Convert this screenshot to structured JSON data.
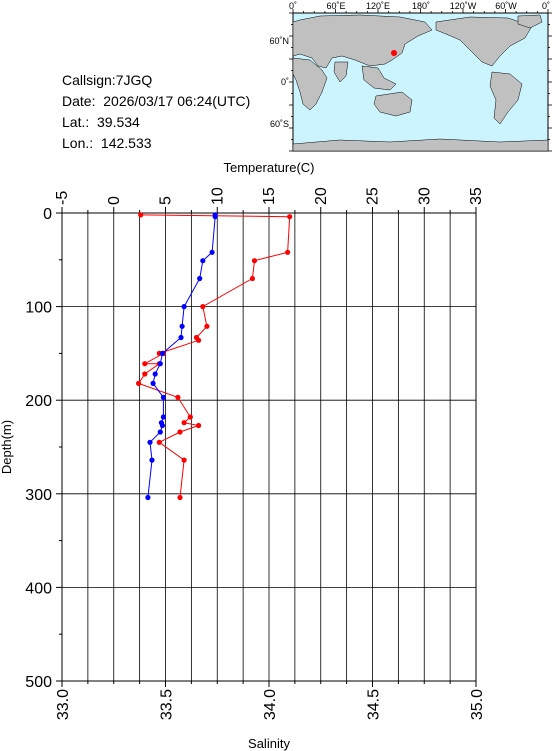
{
  "station": {
    "callsign": "Callsign:7JGQ",
    "date": "Date:  2026/03/17 06:24(UTC)",
    "lat": "Lat.:  39.534",
    "lon": "Lon.:  142.533"
  },
  "map": {
    "top_labels": [
      "0˚",
      "60˚E",
      "120˚E",
      "180˚",
      "120˚W",
      "60˚W",
      "0˚"
    ],
    "left_labels": [
      "60˚N",
      "0˚",
      "60˚S"
    ],
    "ocean_color": "#ccf4ff",
    "land_color": "#c0c0c0",
    "marker_color": "#ff0000"
  },
  "chart_data": {
    "type": "line",
    "title": "",
    "x_top_label": "Temperature(C)",
    "x_bottom_label": "Salinity",
    "ylabel": "Depth(m)",
    "temperature_ticks": [
      "-5",
      "0",
      "5",
      "10",
      "15",
      "20",
      "25",
      "30",
      "35"
    ],
    "salinity_ticks": [
      "33.0",
      "33.5",
      "34.0",
      "34.5",
      "35.0"
    ],
    "depth_ticks": [
      "0",
      "100",
      "200",
      "300",
      "400",
      "500"
    ],
    "temperature_range": [
      -5,
      35
    ],
    "salinity_range": [
      33.0,
      35.0
    ],
    "depth_range": [
      0,
      500
    ],
    "grid": true,
    "series": [
      {
        "color": "#ff0000",
        "axis": "salinity",
        "points": [
          [
            33.38,
            2
          ],
          [
            34.1,
            4
          ],
          [
            34.09,
            42
          ],
          [
            33.93,
            51
          ],
          [
            33.92,
            70
          ],
          [
            33.68,
            100
          ],
          [
            33.7,
            121
          ],
          [
            33.65,
            133
          ],
          [
            33.66,
            136
          ],
          [
            33.47,
            150
          ],
          [
            33.49,
            150
          ],
          [
            33.4,
            161
          ],
          [
            33.47,
            161
          ],
          [
            33.4,
            172
          ],
          [
            33.37,
            182
          ],
          [
            33.56,
            197
          ],
          [
            33.62,
            218
          ],
          [
            33.59,
            224
          ],
          [
            33.66,
            227
          ],
          [
            33.57,
            234
          ],
          [
            33.47,
            245
          ],
          [
            33.59,
            264
          ],
          [
            33.57,
            304
          ]
        ]
      },
      {
        "color": "#0000ff",
        "axis": "temperature",
        "points": [
          [
            9.8,
            2
          ],
          [
            9.8,
            4
          ],
          [
            9.5,
            42
          ],
          [
            8.6,
            51
          ],
          [
            8.3,
            70
          ],
          [
            6.8,
            100
          ],
          [
            6.6,
            121
          ],
          [
            6.5,
            133
          ],
          [
            4.7,
            150
          ],
          [
            4.5,
            161
          ],
          [
            4.0,
            172
          ],
          [
            3.8,
            182
          ],
          [
            4.8,
            197
          ],
          [
            4.8,
            218
          ],
          [
            4.6,
            224
          ],
          [
            4.7,
            227
          ],
          [
            4.5,
            234
          ],
          [
            3.5,
            245
          ],
          [
            3.7,
            264
          ],
          [
            3.3,
            304
          ]
        ]
      }
    ]
  }
}
